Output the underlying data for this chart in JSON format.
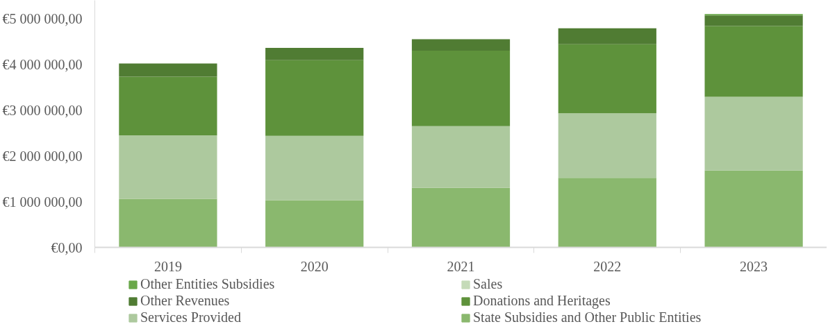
{
  "chart_data": {
    "type": "bar",
    "stacked": true,
    "categories": [
      "2019",
      "2020",
      "2021",
      "2022",
      "2023"
    ],
    "series": [
      {
        "name": "State Subsidies and Other Public Entities",
        "color": "#8ab86e",
        "values": [
          1060000,
          1030000,
          1300000,
          1520000,
          1680000
        ]
      },
      {
        "name": "Services Provided",
        "color": "#adc99e",
        "values": [
          1390000,
          1410000,
          1350000,
          1410000,
          1610000
        ]
      },
      {
        "name": "Donations and Heritages",
        "color": "#5e923b",
        "values": [
          1280000,
          1650000,
          1650000,
          1510000,
          1550000
        ]
      },
      {
        "name": "Other Revenues",
        "color": "#507c33",
        "values": [
          290000,
          270000,
          250000,
          350000,
          230000
        ]
      },
      {
        "name": "Sales",
        "color": "#c5dbb8",
        "values": [
          0,
          0,
          0,
          0,
          0
        ]
      },
      {
        "name": "Other Entities Subsidies",
        "color": "#6aa84a",
        "values": [
          0,
          0,
          0,
          0,
          30000
        ]
      }
    ],
    "ylim": [
      0,
      5400000
    ],
    "yticks": [
      {
        "value": 0,
        "label": "€0,00"
      },
      {
        "value": 1000000,
        "label": "€1 000 000,00"
      },
      {
        "value": 2000000,
        "label": "€2 000 000,00"
      },
      {
        "value": 3000000,
        "label": "€3 000 000,00"
      },
      {
        "value": 4000000,
        "label": "€4 000 000,00"
      },
      {
        "value": 5000000,
        "label": "€5 000 000,00"
      }
    ],
    "grid": false,
    "legend": "bottom"
  }
}
